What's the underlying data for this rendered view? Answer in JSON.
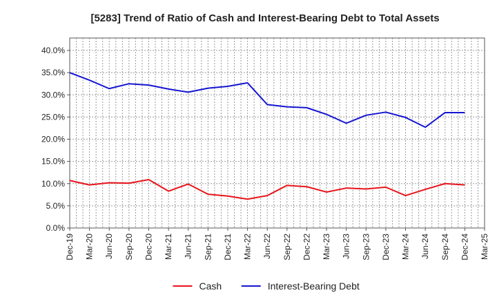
{
  "chart_data": {
    "type": "line",
    "title": "[5283]  Trend of Ratio of Cash and Interest-Bearing Debt to Total Assets",
    "xlabel": "",
    "ylabel": "",
    "categories": [
      "Dec-19",
      "Mar-20",
      "Jun-20",
      "Sep-20",
      "Dec-20",
      "Mar-21",
      "Jun-21",
      "Sep-21",
      "Dec-21",
      "Mar-22",
      "Jun-22",
      "Sep-22",
      "Dec-22",
      "Mar-23",
      "Jun-23",
      "Sep-23",
      "Dec-23",
      "Mar-24",
      "Jun-24",
      "Sep-24",
      "Dec-24",
      "Mar-25"
    ],
    "ylim": [
      0,
      40
    ],
    "yticks": [
      0,
      5,
      10,
      15,
      20,
      25,
      30,
      35,
      40
    ],
    "ytick_labels": [
      "0.0%",
      "5.0%",
      "10.0%",
      "15.0%",
      "20.0%",
      "25.0%",
      "30.0%",
      "35.0%",
      "40.0%"
    ],
    "grid": true,
    "legend_position": "bottom-center",
    "series": [
      {
        "name": "Cash",
        "color": "#e8141b",
        "values": [
          10.7,
          9.7,
          10.2,
          10.1,
          10.9,
          8.3,
          9.9,
          7.6,
          7.2,
          6.5,
          7.3,
          9.6,
          9.3,
          8.1,
          9.0,
          8.8,
          9.2,
          7.3,
          8.7,
          10.0,
          9.7,
          null
        ]
      },
      {
        "name": "Interest-Bearing Debt",
        "color": "#1414d2",
        "values": [
          35.0,
          33.3,
          31.4,
          32.5,
          32.2,
          31.3,
          30.6,
          31.5,
          31.9,
          32.7,
          27.8,
          27.3,
          27.1,
          25.6,
          23.6,
          25.4,
          26.1,
          24.9,
          22.7,
          26.0,
          26.0,
          null
        ]
      }
    ]
  }
}
